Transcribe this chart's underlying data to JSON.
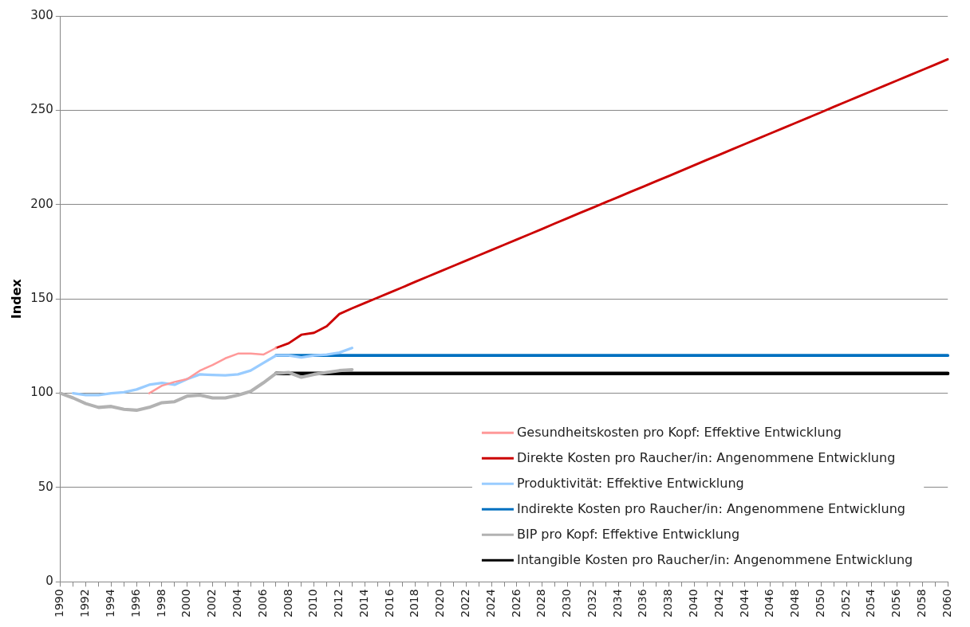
{
  "chart_data": {
    "type": "line",
    "ylabel": "Index",
    "categories": [
      "1990",
      null,
      "1992",
      null,
      "1994",
      null,
      "1996",
      null,
      "1998",
      null,
      "2000",
      null,
      "2002",
      null,
      "2004",
      null,
      "2006",
      null,
      "2008",
      null,
      "2010",
      null,
      "2012",
      null,
      "2014",
      null,
      "2016",
      null,
      "2018",
      null,
      "2020",
      null,
      "2022",
      null,
      "2024",
      null,
      "2026",
      null,
      "2028",
      null,
      "2030",
      null,
      "2032",
      null,
      "2034",
      null,
      "2036",
      null,
      "2038",
      null,
      "2040",
      null,
      "2042",
      null,
      "2044",
      null,
      "2046",
      null,
      "2048",
      null,
      "2050",
      null,
      "2052",
      null,
      "2054",
      null,
      "2056",
      null,
      "2058",
      null,
      "2060"
    ],
    "ylim": [
      0,
      300
    ],
    "yticks": [
      0,
      50,
      100,
      150,
      200,
      250,
      300
    ],
    "grid": "y",
    "legend": "bottom right",
    "marker": "none",
    "line_style": "solid",
    "series": [
      {
        "name": "Gesundheitskosten pro Kopf: Effektive Entwicklung",
        "color": "#ff9999",
        "values": [
          null,
          null,
          null,
          null,
          null,
          null,
          null,
          100,
          104,
          106,
          107.5,
          112,
          115,
          118.5,
          121,
          121,
          120.5,
          124,
          null,
          null,
          null,
          null,
          null,
          null,
          null,
          null,
          null,
          null,
          null,
          null,
          null,
          null,
          null,
          null,
          null,
          null,
          null,
          null,
          null,
          null,
          null,
          null,
          null,
          null,
          null,
          null,
          null,
          null,
          null,
          null,
          null,
          null,
          null,
          null,
          null,
          null,
          null,
          null,
          null,
          null,
          null,
          null,
          null,
          null,
          null,
          null,
          null,
          null,
          null,
          null,
          null
        ]
      },
      {
        "name": "Direkte Kosten pro Raucher/in: Angenommene Entwicklung",
        "color": "#cc0000",
        "values": [
          null,
          null,
          null,
          null,
          null,
          null,
          null,
          null,
          null,
          null,
          null,
          null,
          null,
          null,
          null,
          null,
          null,
          124,
          126.5,
          131,
          132,
          135.5,
          142,
          145,
          147.8,
          150.6,
          153.4,
          156.2,
          159.1,
          161.9,
          164.7,
          167.5,
          170.3,
          173.1,
          175.9,
          178.7,
          181.5,
          184.3,
          187.1,
          190.0,
          192.8,
          195.6,
          198.4,
          201.2,
          204.0,
          206.8,
          209.6,
          212.4,
          215.2,
          218.0,
          220.9,
          223.7,
          226.5,
          229.3,
          232.1,
          234.9,
          237.7,
          240.5,
          243.3,
          246.1,
          248.9,
          251.8,
          254.6,
          257.4,
          260.2,
          263.0,
          265.8,
          268.6,
          271.4,
          274.2,
          277
        ]
      },
      {
        "name": "Produktivität: Effektive Entwicklung",
        "color": "#99ccff",
        "values": [
          null,
          100,
          99,
          99,
          100,
          100.5,
          102,
          104.5,
          105.5,
          104.5,
          107.5,
          110,
          109.7,
          109.5,
          110,
          112,
          116,
          120,
          120,
          119,
          120,
          120.5,
          121.5,
          124,
          null,
          null,
          null,
          null,
          null,
          null,
          null,
          null,
          null,
          null,
          null,
          null,
          null,
          null,
          null,
          null,
          null,
          null,
          null,
          null,
          null,
          null,
          null,
          null,
          null,
          null,
          null,
          null,
          null,
          null,
          null,
          null,
          null,
          null,
          null,
          null,
          null,
          null,
          null,
          null,
          null,
          null,
          null,
          null,
          null,
          null,
          null
        ]
      },
      {
        "name": "Indirekte Kosten pro Raucher/in: Angenommene Entwicklung",
        "color": "#0070c0",
        "values": [
          null,
          null,
          null,
          null,
          null,
          null,
          null,
          null,
          null,
          null,
          null,
          null,
          null,
          null,
          null,
          null,
          null,
          120,
          120,
          120,
          120,
          120,
          120,
          120,
          120,
          120,
          120,
          120,
          120,
          120,
          120,
          120,
          120,
          120,
          120,
          120,
          120,
          120,
          120,
          120,
          120,
          120,
          120,
          120,
          120,
          120,
          120,
          120,
          120,
          120,
          120,
          120,
          120,
          120,
          120,
          120,
          120,
          120,
          120,
          120,
          120,
          120,
          120,
          120,
          120,
          120,
          120,
          120,
          120,
          120,
          120
        ]
      },
      {
        "name": "BIP pro Kopf: Effektive Entwicklung",
        "color": "#b2b2b2",
        "values": [
          100,
          97.5,
          94.5,
          92.5,
          93,
          91.5,
          91,
          92.5,
          95,
          95.5,
          98.5,
          99,
          97.5,
          97.5,
          99,
          101,
          105.5,
          110.5,
          111,
          108.5,
          110,
          111,
          112,
          112.5,
          null,
          null,
          null,
          null,
          null,
          null,
          null,
          null,
          null,
          null,
          null,
          null,
          null,
          null,
          null,
          null,
          null,
          null,
          null,
          null,
          null,
          null,
          null,
          null,
          null,
          null,
          null,
          null,
          null,
          null,
          null,
          null,
          null,
          null,
          null,
          null,
          null,
          null,
          null,
          null,
          null,
          null,
          null,
          null,
          null,
          null,
          null
        ]
      },
      {
        "name": "Intangible Kosten pro Raucher/in: Angenommene Entwicklung",
        "color": "#000000",
        "values": [
          null,
          null,
          null,
          null,
          null,
          null,
          null,
          null,
          null,
          null,
          null,
          null,
          null,
          null,
          null,
          null,
          null,
          110.5,
          110.5,
          110.5,
          110.5,
          110.5,
          110.5,
          110.5,
          110.5,
          110.5,
          110.5,
          110.5,
          110.5,
          110.5,
          110.5,
          110.5,
          110.5,
          110.5,
          110.5,
          110.5,
          110.5,
          110.5,
          110.5,
          110.5,
          110.5,
          110.5,
          110.5,
          110.5,
          110.5,
          110.5,
          110.5,
          110.5,
          110.5,
          110.5,
          110.5,
          110.5,
          110.5,
          110.5,
          110.5,
          110.5,
          110.5,
          110.5,
          110.5,
          110.5,
          110.5,
          110.5,
          110.5,
          110.5,
          110.5,
          110.5,
          110.5,
          110.5,
          110.5,
          110.5,
          110.5
        ]
      }
    ]
  }
}
